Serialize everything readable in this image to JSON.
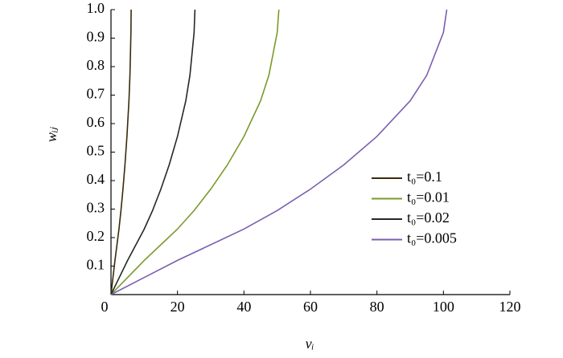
{
  "chart_data": {
    "type": "line",
    "xlabel": "vᵢ",
    "ylabel": "wᵢⱼ",
    "xlim": [
      0,
      120
    ],
    "xticks": [
      0,
      20,
      40,
      60,
      80,
      100,
      120
    ],
    "ylim": [
      0,
      1
    ],
    "yticks": [
      0.1,
      0.2,
      0.3,
      0.4,
      0.5,
      0.6,
      0.7,
      0.8,
      0.9,
      {
        "value": 1,
        "label": "1.0"
      }
    ],
    "legend": "right",
    "series": [
      {
        "name": "t₀=0.1",
        "color": "#3b2a0a",
        "x": [
          0,
          0.6,
          1.2,
          1.8,
          2.4,
          3,
          3.6,
          4.2,
          4.8,
          5.4,
          5.7,
          6,
          6.06
        ],
        "values": [
          0,
          0.06,
          0.12,
          0.175,
          0.23,
          0.295,
          0.37,
          0.455,
          0.555,
          0.68,
          0.77,
          0.92,
          1
        ]
      },
      {
        "name": "t₀=0.01",
        "color": "#7a9a2a",
        "x": [
          0,
          5,
          10,
          15,
          20,
          25,
          30,
          35,
          40,
          45,
          47.5,
          50,
          50.5
        ],
        "values": [
          0,
          0.06,
          0.12,
          0.175,
          0.23,
          0.295,
          0.37,
          0.455,
          0.555,
          0.68,
          0.77,
          0.92,
          1
        ]
      },
      {
        "name": "t₀=0.02",
        "color": "#222a22",
        "x": [
          0,
          2.5,
          5,
          7.5,
          10,
          12.5,
          15,
          17.5,
          20,
          22.5,
          23.75,
          25,
          25.25
        ],
        "values": [
          0,
          0.06,
          0.12,
          0.175,
          0.23,
          0.295,
          0.37,
          0.455,
          0.555,
          0.68,
          0.77,
          0.92,
          1
        ]
      },
      {
        "name": "t₀=0.005",
        "color": "#7b5fb0",
        "x": [
          0,
          10,
          20,
          30,
          40,
          50,
          60,
          70,
          80,
          90,
          95,
          100,
          101
        ],
        "values": [
          0,
          0.06,
          0.12,
          0.175,
          0.23,
          0.295,
          0.37,
          0.455,
          0.555,
          0.68,
          0.77,
          0.92,
          1
        ]
      }
    ]
  }
}
